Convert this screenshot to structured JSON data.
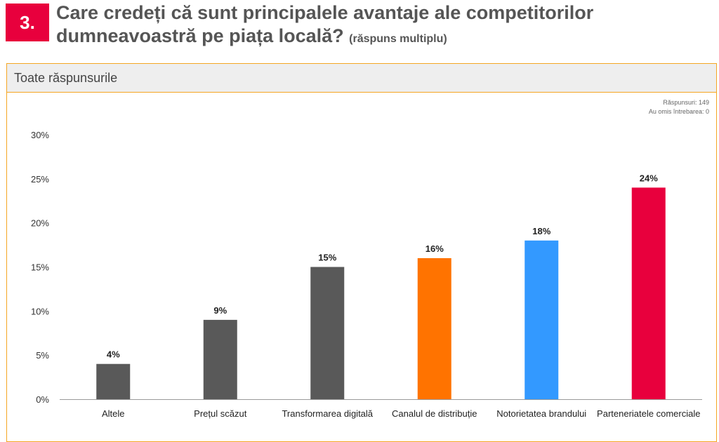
{
  "question": {
    "number": "3.",
    "title": "Care credeți că sunt principalele avantaje ale competitorilor dumneavoastră pe piața locală?",
    "subtitle": "(răspuns multiplu)"
  },
  "panel": {
    "header": "Toate răspunsurile"
  },
  "stats": {
    "responses_label": "Răspunsuri:",
    "responses": "149",
    "skipped_label": "Au omis întrebarea:",
    "skipped": "0"
  },
  "colors": {
    "accent": "#e8003d",
    "border": "#f5a623",
    "gray": "#595959",
    "orange": "#ff7300",
    "blue": "#3399ff",
    "red": "#e8003d"
  },
  "chart_data": {
    "type": "bar",
    "title": "",
    "xlabel": "",
    "ylabel": "",
    "ylim": [
      0,
      30
    ],
    "yticks": [
      "0%",
      "5%",
      "10%",
      "15%",
      "20%",
      "25%",
      "30%"
    ],
    "categories": [
      "Altele",
      "Prețul scăzut",
      "Transformarea digitală",
      "Canalul de distribuție",
      "Notorietatea brandului",
      "Parteneriatele comerciale"
    ],
    "values": [
      4,
      9,
      15,
      16,
      18,
      24
    ],
    "labels": [
      "4%",
      "9%",
      "15%",
      "16%",
      "18%",
      "24%"
    ],
    "bar_colors": [
      "#595959",
      "#595959",
      "#595959",
      "#ff7300",
      "#3399ff",
      "#e8003d"
    ],
    "grid": false,
    "legend": "none"
  }
}
